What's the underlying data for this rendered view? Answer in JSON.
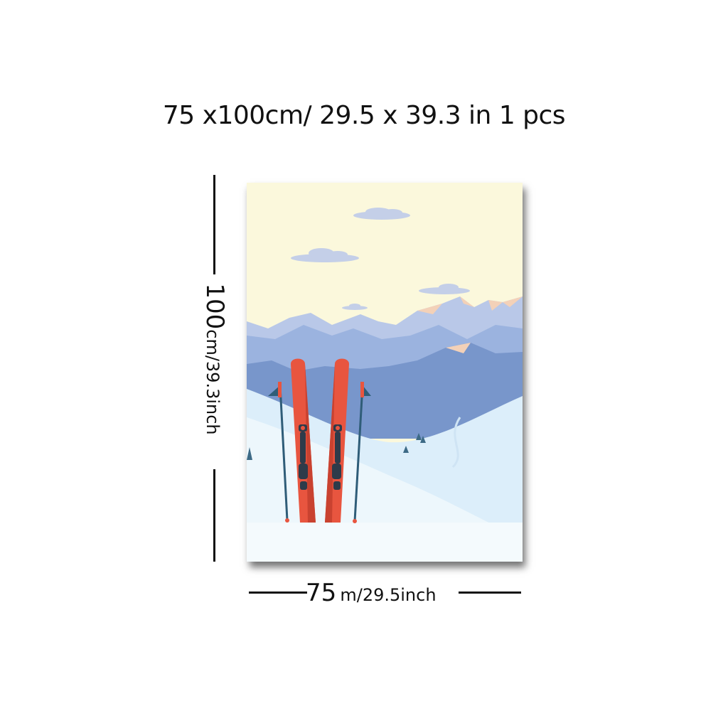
{
  "title": "75 x100cm/ 29.5 x 39.3 in 1 pcs",
  "width_label": {
    "number": "75",
    "unit": "m/29.5inch"
  },
  "height_label": {
    "number": "100",
    "unit": "cm/39.3inch"
  },
  "colors": {
    "sky": "#fbf8dc",
    "mountain_far": "#b9c8e8",
    "mountain_mid": "#8ea7d8",
    "mountain_near": "#6f8fc6",
    "peak_highlight": "#f3d1b8",
    "snow": "#eaf5fb",
    "ski": "#e8553f",
    "pole": "#2f5d78"
  }
}
